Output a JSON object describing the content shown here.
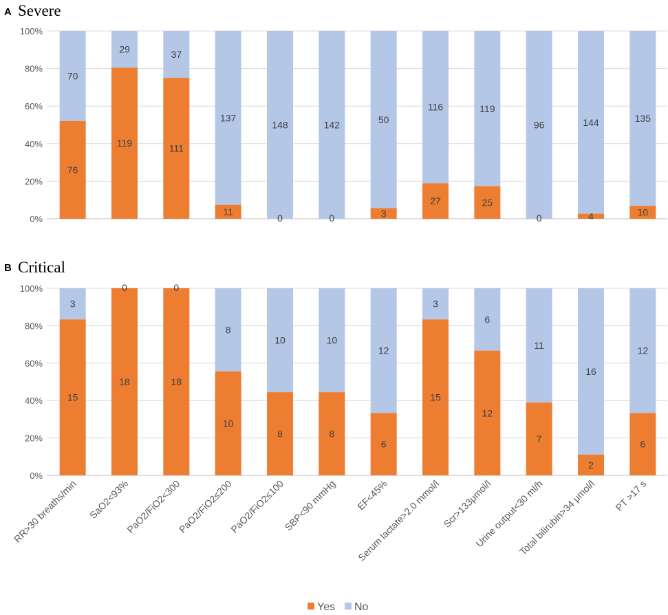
{
  "colors": {
    "yes": "#ED7D31",
    "no": "#B4C7E7",
    "grid": "#D9D9D9",
    "axis": "#BFBFBF"
  },
  "categories": [
    "RR>30 breaths/min",
    "SaO2<93%",
    "PaO2/FiO2<300",
    "PaO2/FiO2≤200",
    "PaO2/FiO2≤100",
    "SBP<90 mmHg",
    "EF<45%",
    "Serum lactate>2.0 mmol/l",
    "Scr>133μmol/l",
    "Urine output<30 ml/h",
    "Total bilirubin>34 μmol/l",
    "PT >17 s"
  ],
  "legend": [
    {
      "key": "yes",
      "label": "Yes"
    },
    {
      "key": "no",
      "label": "No"
    }
  ],
  "chart_data": [
    {
      "type": "bar",
      "stacking": "percent",
      "panel": "A",
      "title": "Severe",
      "yticks": [
        "0%",
        "20%",
        "40%",
        "60%",
        "80%",
        "100%"
      ],
      "ylim": [
        0,
        100
      ],
      "series": [
        {
          "name": "Yes",
          "values": [
            76,
            119,
            111,
            11,
            0,
            0,
            3,
            27,
            25,
            0,
            4,
            10
          ]
        },
        {
          "name": "No",
          "values": [
            70,
            29,
            37,
            137,
            148,
            142,
            50,
            116,
            119,
            96,
            144,
            135
          ]
        }
      ]
    },
    {
      "type": "bar",
      "stacking": "percent",
      "panel": "B",
      "title": "Critical",
      "yticks": [
        "0%",
        "20%",
        "40%",
        "60%",
        "80%",
        "100%"
      ],
      "ylim": [
        0,
        100
      ],
      "series": [
        {
          "name": "Yes",
          "values": [
            15,
            18,
            18,
            10,
            8,
            8,
            6,
            15,
            12,
            7,
            2,
            6
          ]
        },
        {
          "name": "No",
          "values": [
            3,
            0,
            0,
            8,
            10,
            10,
            12,
            3,
            6,
            11,
            16,
            12
          ]
        }
      ]
    }
  ]
}
